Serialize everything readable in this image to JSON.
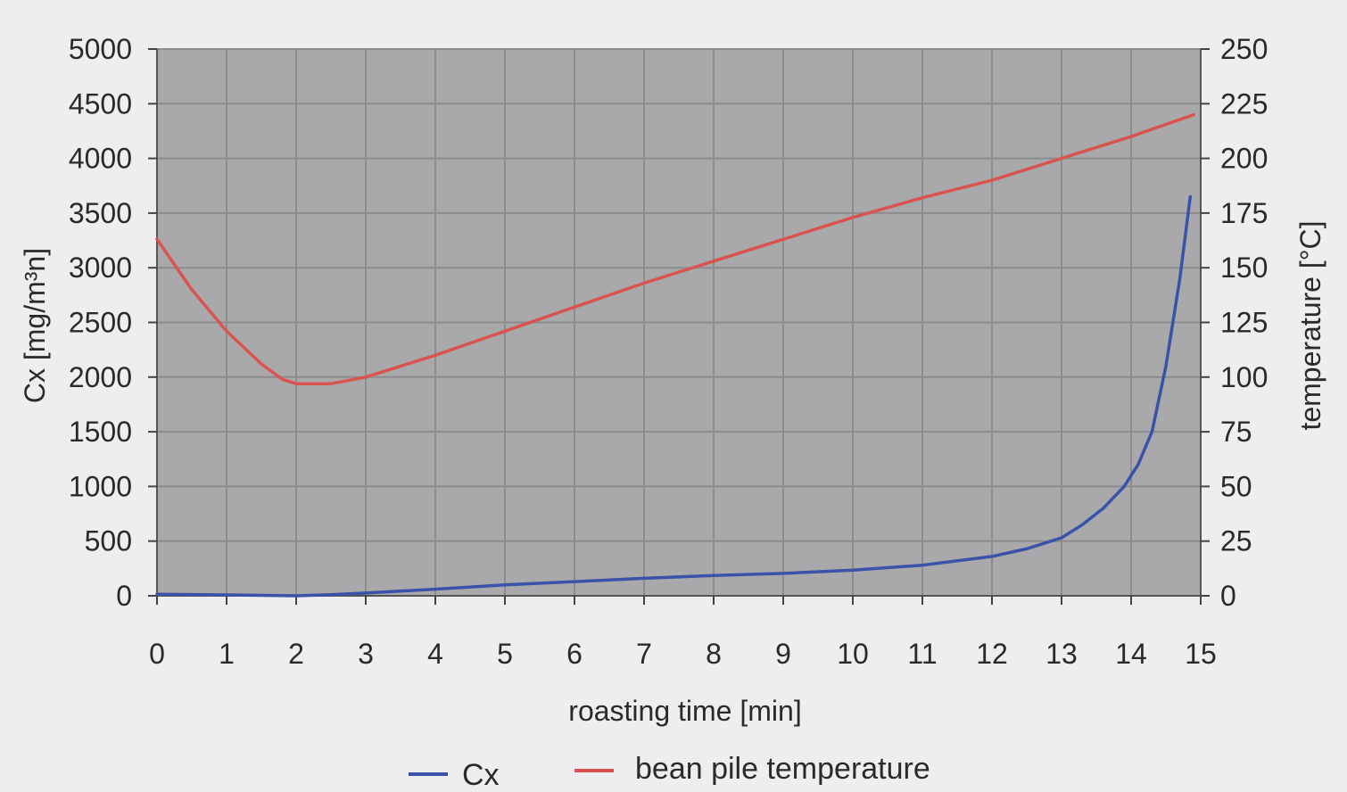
{
  "chart_data": {
    "type": "line",
    "title": "",
    "xlabel": "roasting time [min]",
    "ylabel_left": "Cx [mg/m³n]",
    "ylabel_right": "temperature [°C]",
    "xlim": [
      0,
      15
    ],
    "ylim_left": [
      0,
      5000
    ],
    "ylim_right": [
      0,
      250
    ],
    "grid": true,
    "legend_position": "bottom",
    "x_ticks": [
      "0",
      "1",
      "2",
      "3",
      "4",
      "5",
      "6",
      "7",
      "8",
      "9",
      "10",
      "11",
      "12",
      "13",
      "14",
      "15"
    ],
    "y_left_ticks": [
      "0",
      "500",
      "1000",
      "1500",
      "2000",
      "2500",
      "3000",
      "3500",
      "4000",
      "4500",
      "5000"
    ],
    "y_right_ticks": [
      "0",
      "25",
      "50",
      "75",
      "100",
      "125",
      "150",
      "175",
      "200",
      "225",
      "250"
    ],
    "plot_background": "#a9a9ab",
    "series": [
      {
        "name": "Cx",
        "axis": "left",
        "color": "#3a52a8",
        "points": [
          [
            0,
            15
          ],
          [
            1,
            8
          ],
          [
            2,
            0
          ],
          [
            2.5,
            10
          ],
          [
            3,
            25
          ],
          [
            4,
            60
          ],
          [
            5,
            100
          ],
          [
            6,
            130
          ],
          [
            7,
            160
          ],
          [
            8,
            185
          ],
          [
            9,
            205
          ],
          [
            10,
            235
          ],
          [
            11,
            280
          ],
          [
            12,
            360
          ],
          [
            12.5,
            430
          ],
          [
            13,
            530
          ],
          [
            13.3,
            650
          ],
          [
            13.6,
            800
          ],
          [
            13.9,
            1000
          ],
          [
            14.1,
            1200
          ],
          [
            14.3,
            1500
          ],
          [
            14.5,
            2100
          ],
          [
            14.7,
            2900
          ],
          [
            14.85,
            3650
          ]
        ]
      },
      {
        "name": "bean pile temperature",
        "axis": "right",
        "color": "#d9534f",
        "points": [
          [
            0,
            163
          ],
          [
            0.5,
            140
          ],
          [
            1,
            121
          ],
          [
            1.5,
            106
          ],
          [
            1.8,
            99
          ],
          [
            2,
            97
          ],
          [
            2.5,
            97
          ],
          [
            3,
            100
          ],
          [
            4,
            110
          ],
          [
            5,
            121
          ],
          [
            6,
            132
          ],
          [
            7,
            143
          ],
          [
            8,
            153
          ],
          [
            9,
            163
          ],
          [
            10,
            173
          ],
          [
            11,
            182
          ],
          [
            12,
            190
          ],
          [
            13,
            200
          ],
          [
            14,
            210
          ],
          [
            14.9,
            220
          ]
        ]
      }
    ]
  },
  "legend": {
    "items": [
      {
        "label": "Cx",
        "color": "#3a52a8"
      },
      {
        "label": "bean pile temperature",
        "color": "#d9534f"
      }
    ]
  }
}
